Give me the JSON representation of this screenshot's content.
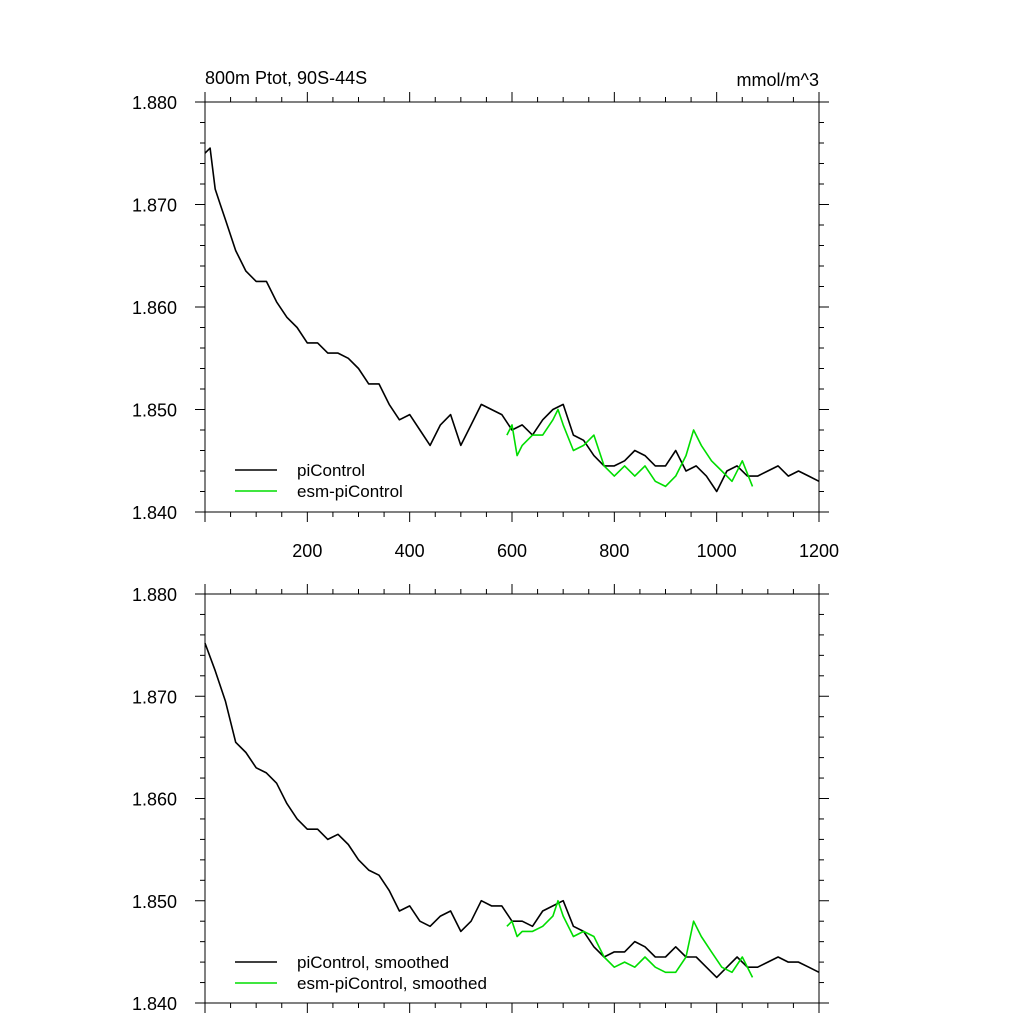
{
  "chart_data": [
    {
      "type": "line",
      "title": "800m Ptot, 90S-44S",
      "units": "mmol/m^3",
      "xlim": [
        0,
        1200
      ],
      "ylim": [
        1.84,
        1.88
      ],
      "xticks": [
        200,
        400,
        600,
        800,
        1000,
        1200
      ],
      "xtick_labels": [
        "200",
        "400",
        "600",
        "800",
        "1000",
        "1200"
      ],
      "yticks": [
        1.84,
        1.85,
        1.86,
        1.87,
        1.88
      ],
      "ytick_labels": [
        "1.840",
        "1.850",
        "1.860",
        "1.870",
        "1.880"
      ],
      "grid": false,
      "legend": "bottom-left",
      "series": [
        {
          "name": "piControl",
          "color": "#000000",
          "x": [
            0,
            10,
            20,
            30,
            40,
            60,
            80,
            100,
            120,
            140,
            160,
            180,
            200,
            220,
            240,
            260,
            280,
            300,
            320,
            340,
            360,
            380,
            400,
            420,
            440,
            460,
            480,
            500,
            520,
            540,
            560,
            580,
            600,
            620,
            640,
            660,
            680,
            700,
            720,
            740,
            760,
            780,
            800,
            820,
            840,
            860,
            880,
            900,
            920,
            940,
            960,
            980,
            1000,
            1020,
            1040,
            1060,
            1080,
            1100,
            1120,
            1140,
            1160,
            1180,
            1200
          ],
          "values": [
            1.875,
            1.8755,
            1.8715,
            1.87,
            1.8685,
            1.8655,
            1.8635,
            1.8625,
            1.8625,
            1.8605,
            1.859,
            1.858,
            1.8565,
            1.8565,
            1.8555,
            1.8555,
            1.855,
            1.854,
            1.8525,
            1.8525,
            1.8505,
            1.849,
            1.8495,
            1.848,
            1.8465,
            1.8485,
            1.8495,
            1.8465,
            1.8485,
            1.8505,
            1.85,
            1.8495,
            1.848,
            1.8485,
            1.8475,
            1.849,
            1.85,
            1.8505,
            1.8475,
            1.847,
            1.8455,
            1.8445,
            1.8445,
            1.845,
            1.846,
            1.8455,
            1.8445,
            1.8445,
            1.846,
            1.844,
            1.8445,
            1.8435,
            1.842,
            1.844,
            1.8445,
            1.8435,
            1.8435,
            1.844,
            1.8445,
            1.8435,
            1.844,
            1.8435,
            1.843
          ]
        },
        {
          "name": "esm-piControl",
          "color": "#00dd00",
          "x": [
            590,
            600,
            610,
            620,
            640,
            660,
            680,
            690,
            700,
            720,
            740,
            760,
            780,
            800,
            820,
            840,
            860,
            880,
            900,
            920,
            940,
            955,
            970,
            990,
            1010,
            1030,
            1050,
            1070
          ],
          "values": [
            1.8475,
            1.8485,
            1.8455,
            1.8465,
            1.8475,
            1.8475,
            1.849,
            1.85,
            1.8485,
            1.846,
            1.8465,
            1.8475,
            1.8445,
            1.8435,
            1.8445,
            1.8435,
            1.8445,
            1.843,
            1.8425,
            1.8435,
            1.8455,
            1.848,
            1.8465,
            1.845,
            1.844,
            1.843,
            1.845,
            1.8425
          ]
        }
      ]
    },
    {
      "type": "line",
      "xlim": [
        0,
        1200
      ],
      "ylim": [
        1.84,
        1.88
      ],
      "yticks": [
        1.84,
        1.85,
        1.86,
        1.87,
        1.88
      ],
      "ytick_labels": [
        "1.840",
        "1.850",
        "1.860",
        "1.870",
        "1.880"
      ],
      "grid": false,
      "legend": "bottom-left",
      "series": [
        {
          "name": "piControl, smoothed",
          "color": "#000000",
          "x": [
            0,
            20,
            40,
            60,
            80,
            100,
            120,
            140,
            160,
            180,
            200,
            220,
            240,
            260,
            280,
            300,
            320,
            340,
            360,
            380,
            400,
            420,
            440,
            460,
            480,
            500,
            520,
            540,
            560,
            580,
            600,
            620,
            640,
            660,
            680,
            700,
            720,
            740,
            760,
            780,
            800,
            820,
            840,
            860,
            880,
            900,
            920,
            940,
            960,
            980,
            1000,
            1020,
            1040,
            1060,
            1080,
            1100,
            1120,
            1140,
            1160,
            1180,
            1200
          ],
          "values": [
            1.8752,
            1.8725,
            1.8695,
            1.8655,
            1.8645,
            1.863,
            1.8625,
            1.8615,
            1.8595,
            1.858,
            1.857,
            1.857,
            1.856,
            1.8565,
            1.8555,
            1.854,
            1.853,
            1.8525,
            1.851,
            1.849,
            1.8495,
            1.848,
            1.8475,
            1.8485,
            1.849,
            1.847,
            1.848,
            1.85,
            1.8495,
            1.8495,
            1.848,
            1.848,
            1.8475,
            1.849,
            1.8495,
            1.85,
            1.8475,
            1.847,
            1.8455,
            1.8445,
            1.845,
            1.845,
            1.846,
            1.8455,
            1.8445,
            1.8445,
            1.8455,
            1.8445,
            1.8445,
            1.8435,
            1.8425,
            1.8435,
            1.8445,
            1.8435,
            1.8435,
            1.844,
            1.8445,
            1.844,
            1.844,
            1.8435,
            1.843
          ]
        },
        {
          "name": "esm-piControl, smoothed",
          "color": "#00dd00",
          "x": [
            590,
            600,
            610,
            620,
            640,
            660,
            680,
            690,
            700,
            720,
            740,
            760,
            780,
            800,
            820,
            840,
            860,
            880,
            900,
            920,
            940,
            955,
            970,
            990,
            1010,
            1030,
            1050,
            1070
          ],
          "values": [
            1.8475,
            1.848,
            1.8465,
            1.847,
            1.847,
            1.8475,
            1.8485,
            1.85,
            1.8485,
            1.8465,
            1.847,
            1.8465,
            1.8445,
            1.8435,
            1.844,
            1.8435,
            1.8445,
            1.8435,
            1.843,
            1.843,
            1.8445,
            1.848,
            1.8465,
            1.845,
            1.8435,
            1.843,
            1.8445,
            1.8425
          ]
        }
      ]
    }
  ]
}
